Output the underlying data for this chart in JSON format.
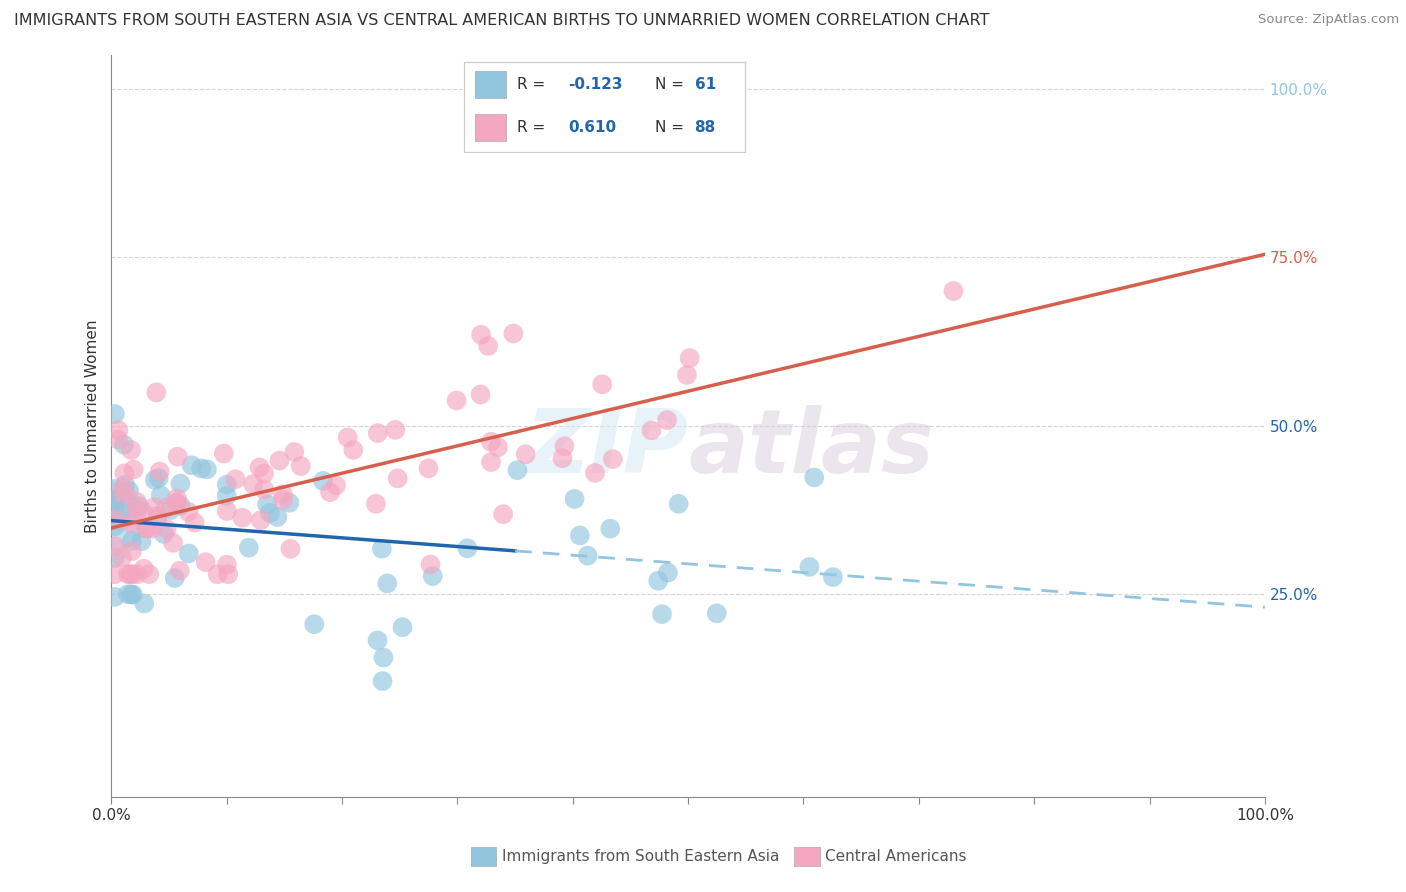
{
  "title": "IMMIGRANTS FROM SOUTH EASTERN ASIA VS CENTRAL AMERICAN BIRTHS TO UNMARRIED WOMEN CORRELATION CHART",
  "source": "Source: ZipAtlas.com",
  "xlabel_blue": "Immigrants from South Eastern Asia",
  "xlabel_pink": "Central Americans",
  "ylabel": "Births to Unmarried Women",
  "r_blue": -0.123,
  "n_blue": 61,
  "r_pink": 0.61,
  "n_pink": 88,
  "watermark": "ZIPatlas",
  "blue_color": "#92c5de",
  "pink_color": "#f4a6c0",
  "blue_line_solid_color": "#2166ac",
  "blue_line_dash_color": "#92c5de",
  "pink_line_color": "#d6604d",
  "background_color": "#ffffff",
  "grid_color": "#cccccc",
  "xlim": [
    0,
    100
  ],
  "ylim": [
    -5,
    105
  ],
  "plot_ymin": 0,
  "plot_ymax": 100,
  "ytick_right_labels": [
    "25.0%",
    "50.0%",
    "75.0%",
    "100.0%"
  ],
  "ytick_right_positions": [
    25,
    50,
    75,
    100
  ],
  "title_fontsize": 12,
  "axis_label_fontsize": 11,
  "right_tick_color_25": "#2166ac",
  "right_tick_color_50": "#2166ac",
  "right_tick_color_75": "#d6604d",
  "right_tick_color_100": "#92c5de"
}
